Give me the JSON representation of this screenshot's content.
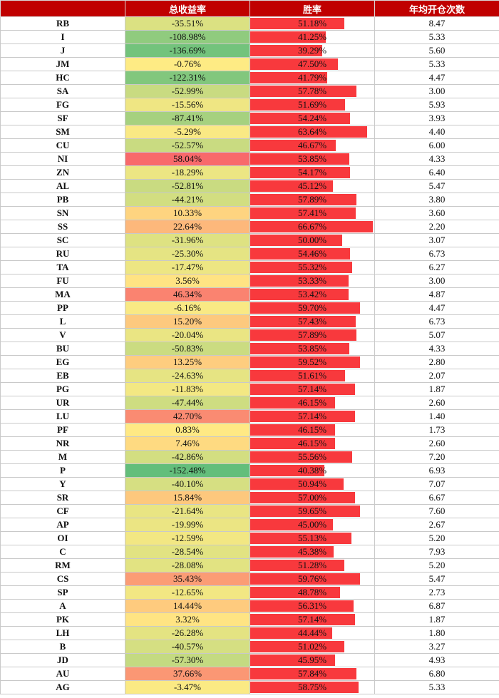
{
  "headers": {
    "symbol": "",
    "total_return": "总收益率",
    "win_rate": "胜率",
    "opens_per_year": "年均开仓次数"
  },
  "win_bar_max": 66.67,
  "rows": [
    {
      "symbol": "RB",
      "ret": "-35.51%",
      "ret_value": -35.51,
      "win": "51.18%",
      "win_value": 51.18,
      "opens": "8.47"
    },
    {
      "symbol": "I",
      "ret": "-108.98%",
      "ret_value": -108.98,
      "win": "41.25%",
      "win_value": 41.25,
      "opens": "5.33"
    },
    {
      "symbol": "J",
      "ret": "-136.69%",
      "ret_value": -136.69,
      "win": "39.29%",
      "win_value": 39.29,
      "opens": "5.60"
    },
    {
      "symbol": "JM",
      "ret": "-0.76%",
      "ret_value": -0.76,
      "win": "47.50%",
      "win_value": 47.5,
      "opens": "5.33"
    },
    {
      "symbol": "HC",
      "ret": "-122.31%",
      "ret_value": -122.31,
      "win": "41.79%",
      "win_value": 41.79,
      "opens": "4.47"
    },
    {
      "symbol": "SA",
      "ret": "-52.99%",
      "ret_value": -52.99,
      "win": "57.78%",
      "win_value": 57.78,
      "opens": "3.00"
    },
    {
      "symbol": "FG",
      "ret": "-15.56%",
      "ret_value": -15.56,
      "win": "51.69%",
      "win_value": 51.69,
      "opens": "5.93"
    },
    {
      "symbol": "SF",
      "ret": "-87.41%",
      "ret_value": -87.41,
      "win": "54.24%",
      "win_value": 54.24,
      "opens": "3.93"
    },
    {
      "symbol": "SM",
      "ret": "-5.29%",
      "ret_value": -5.29,
      "win": "63.64%",
      "win_value": 63.64,
      "opens": "4.40"
    },
    {
      "symbol": "CU",
      "ret": "-52.57%",
      "ret_value": -52.57,
      "win": "46.67%",
      "win_value": 46.67,
      "opens": "6.00"
    },
    {
      "symbol": "NI",
      "ret": "58.04%",
      "ret_value": 58.04,
      "win": "53.85%",
      "win_value": 53.85,
      "opens": "4.33"
    },
    {
      "symbol": "ZN",
      "ret": "-18.29%",
      "ret_value": -18.29,
      "win": "54.17%",
      "win_value": 54.17,
      "opens": "6.40"
    },
    {
      "symbol": "AL",
      "ret": "-52.81%",
      "ret_value": -52.81,
      "win": "45.12%",
      "win_value": 45.12,
      "opens": "5.47"
    },
    {
      "symbol": "PB",
      "ret": "-44.21%",
      "ret_value": -44.21,
      "win": "57.89%",
      "win_value": 57.89,
      "opens": "3.80"
    },
    {
      "symbol": "SN",
      "ret": "10.33%",
      "ret_value": 10.33,
      "win": "57.41%",
      "win_value": 57.41,
      "opens": "3.60"
    },
    {
      "symbol": "SS",
      "ret": "22.64%",
      "ret_value": 22.64,
      "win": "66.67%",
      "win_value": 66.67,
      "opens": "2.20"
    },
    {
      "symbol": "SC",
      "ret": "-31.96%",
      "ret_value": -31.96,
      "win": "50.00%",
      "win_value": 50.0,
      "opens": "3.07"
    },
    {
      "symbol": "RU",
      "ret": "-25.30%",
      "ret_value": -25.3,
      "win": "54.46%",
      "win_value": 54.46,
      "opens": "6.73"
    },
    {
      "symbol": "TA",
      "ret": "-17.47%",
      "ret_value": -17.47,
      "win": "55.32%",
      "win_value": 55.32,
      "opens": "6.27"
    },
    {
      "symbol": "FU",
      "ret": "3.56%",
      "ret_value": 3.56,
      "win": "53.33%",
      "win_value": 53.33,
      "opens": "3.00"
    },
    {
      "symbol": "MA",
      "ret": "46.34%",
      "ret_value": 46.34,
      "win": "53.42%",
      "win_value": 53.42,
      "opens": "4.87"
    },
    {
      "symbol": "PP",
      "ret": "-6.16%",
      "ret_value": -6.16,
      "win": "59.70%",
      "win_value": 59.7,
      "opens": "4.47"
    },
    {
      "symbol": "L",
      "ret": "15.20%",
      "ret_value": 15.2,
      "win": "57.43%",
      "win_value": 57.43,
      "opens": "6.73"
    },
    {
      "symbol": "V",
      "ret": "-20.04%",
      "ret_value": -20.04,
      "win": "57.89%",
      "win_value": 57.89,
      "opens": "5.07"
    },
    {
      "symbol": "BU",
      "ret": "-50.83%",
      "ret_value": -50.83,
      "win": "53.85%",
      "win_value": 53.85,
      "opens": "4.33"
    },
    {
      "symbol": "EG",
      "ret": "13.25%",
      "ret_value": 13.25,
      "win": "59.52%",
      "win_value": 59.52,
      "opens": "2.80"
    },
    {
      "symbol": "EB",
      "ret": "-24.63%",
      "ret_value": -24.63,
      "win": "51.61%",
      "win_value": 51.61,
      "opens": "2.07"
    },
    {
      "symbol": "PG",
      "ret": "-11.83%",
      "ret_value": -11.83,
      "win": "57.14%",
      "win_value": 57.14,
      "opens": "1.87"
    },
    {
      "symbol": "UR",
      "ret": "-47.44%",
      "ret_value": -47.44,
      "win": "46.15%",
      "win_value": 46.15,
      "opens": "2.60"
    },
    {
      "symbol": "LU",
      "ret": "42.70%",
      "ret_value": 42.7,
      "win": "57.14%",
      "win_value": 57.14,
      "opens": "1.40"
    },
    {
      "symbol": "PF",
      "ret": "0.83%",
      "ret_value": 0.83,
      "win": "46.15%",
      "win_value": 46.15,
      "opens": "1.73"
    },
    {
      "symbol": "NR",
      "ret": "7.46%",
      "ret_value": 7.46,
      "win": "46.15%",
      "win_value": 46.15,
      "opens": "2.60"
    },
    {
      "symbol": "M",
      "ret": "-42.86%",
      "ret_value": -42.86,
      "win": "55.56%",
      "win_value": 55.56,
      "opens": "7.20"
    },
    {
      "symbol": "P",
      "ret": "-152.48%",
      "ret_value": -152.48,
      "win": "40.38%",
      "win_value": 40.38,
      "opens": "6.93"
    },
    {
      "symbol": "Y",
      "ret": "-40.10%",
      "ret_value": -40.1,
      "win": "50.94%",
      "win_value": 50.94,
      "opens": "7.07"
    },
    {
      "symbol": "SR",
      "ret": "15.84%",
      "ret_value": 15.84,
      "win": "57.00%",
      "win_value": 57.0,
      "opens": "6.67"
    },
    {
      "symbol": "CF",
      "ret": "-21.64%",
      "ret_value": -21.64,
      "win": "59.65%",
      "win_value": 59.65,
      "opens": "7.60"
    },
    {
      "symbol": "AP",
      "ret": "-19.99%",
      "ret_value": -19.99,
      "win": "45.00%",
      "win_value": 45.0,
      "opens": "2.67"
    },
    {
      "symbol": "OI",
      "ret": "-12.59%",
      "ret_value": -12.59,
      "win": "55.13%",
      "win_value": 55.13,
      "opens": "5.20"
    },
    {
      "symbol": "C",
      "ret": "-28.54%",
      "ret_value": -28.54,
      "win": "45.38%",
      "win_value": 45.38,
      "opens": "7.93"
    },
    {
      "symbol": "RM",
      "ret": "-28.08%",
      "ret_value": -28.08,
      "win": "51.28%",
      "win_value": 51.28,
      "opens": "5.20"
    },
    {
      "symbol": "CS",
      "ret": "35.43%",
      "ret_value": 35.43,
      "win": "59.76%",
      "win_value": 59.76,
      "opens": "5.47"
    },
    {
      "symbol": "SP",
      "ret": "-12.65%",
      "ret_value": -12.65,
      "win": "48.78%",
      "win_value": 48.78,
      "opens": "2.73"
    },
    {
      "symbol": "A",
      "ret": "14.44%",
      "ret_value": 14.44,
      "win": "56.31%",
      "win_value": 56.31,
      "opens": "6.87"
    },
    {
      "symbol": "PK",
      "ret": "3.32%",
      "ret_value": 3.32,
      "win": "57.14%",
      "win_value": 57.14,
      "opens": "1.87"
    },
    {
      "symbol": "LH",
      "ret": "-26.28%",
      "ret_value": -26.28,
      "win": "44.44%",
      "win_value": 44.44,
      "opens": "1.80"
    },
    {
      "symbol": "B",
      "ret": "-40.57%",
      "ret_value": -40.57,
      "win": "51.02%",
      "win_value": 51.02,
      "opens": "3.27"
    },
    {
      "symbol": "JD",
      "ret": "-57.30%",
      "ret_value": -57.3,
      "win": "45.95%",
      "win_value": 45.95,
      "opens": "4.93"
    },
    {
      "symbol": "AU",
      "ret": "37.66%",
      "ret_value": 37.66,
      "win": "57.84%",
      "win_value": 57.84,
      "opens": "6.80"
    },
    {
      "symbol": "AG",
      "ret": "-3.47%",
      "ret_value": -3.47,
      "win": "58.75%",
      "win_value": 58.75,
      "opens": "5.33"
    }
  ]
}
